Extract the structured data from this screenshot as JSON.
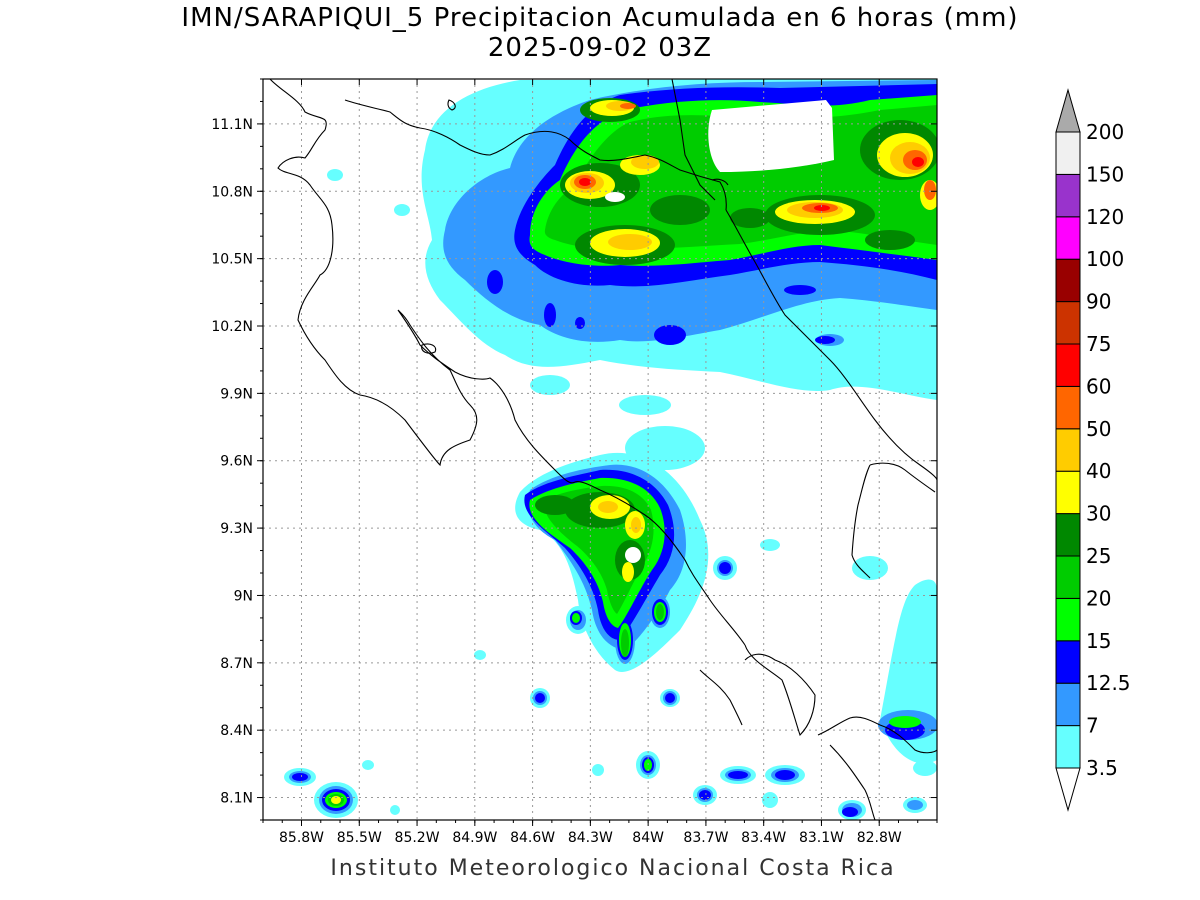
{
  "title": {
    "line1": "IMN/SARAPIQUI_5 Precipitacion Acumulada en 6 horas (mm)",
    "line2": "2025-09-02 03Z"
  },
  "footer": "Instituto Meteorologico Nacional Costa Rica",
  "map": {
    "lon_range": [
      -86.0,
      -82.5
    ],
    "lat_range": [
      8.0,
      11.3
    ],
    "lon_ticks": [
      "85.8W",
      "85.5W",
      "85.2W",
      "84.9W",
      "84.6W",
      "84.3W",
      "84W",
      "83.7W",
      "83.4W",
      "83.1W",
      "82.8W"
    ],
    "lon_tick_values": [
      -85.8,
      -85.5,
      -85.2,
      -84.9,
      -84.6,
      -84.3,
      -84.0,
      -83.7,
      -83.4,
      -83.1,
      -82.8
    ],
    "lat_ticks": [
      "11.1N",
      "10.8N",
      "10.5N",
      "10.2N",
      "9.9N",
      "9.6N",
      "9.3N",
      "9N",
      "8.7N",
      "8.4N",
      "8.1N"
    ],
    "lat_tick_values": [
      11.1,
      10.8,
      10.5,
      10.2,
      9.9,
      9.6,
      9.3,
      9.0,
      8.7,
      8.4,
      8.1
    ],
    "grid": true
  },
  "legend": {
    "levels": [
      "3.5",
      "7",
      "12.5",
      "15",
      "20",
      "25",
      "30",
      "40",
      "50",
      "60",
      "75",
      "90",
      "100",
      "120",
      "150",
      "200"
    ],
    "colors": [
      "#66ffff",
      "#3399ff",
      "#0000ff",
      "#00ff00",
      "#00cc00",
      "#008800",
      "#ffff00",
      "#ffcc00",
      "#ff6600",
      "#ff0000",
      "#cc3300",
      "#990000",
      "#ff00ff",
      "#9933cc",
      "#f0f0f0",
      "#aaaaaa"
    ],
    "extend": "both"
  }
}
